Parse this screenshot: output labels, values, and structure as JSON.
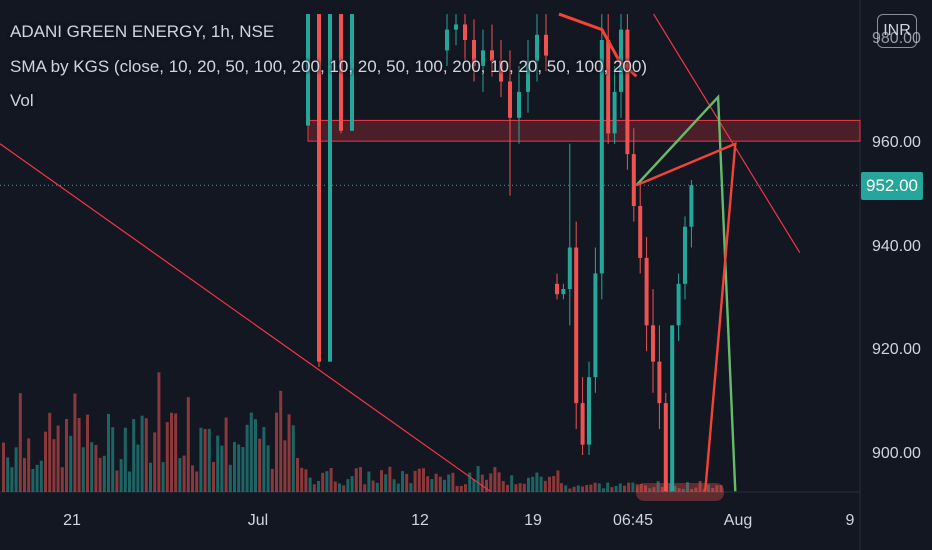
{
  "legend": {
    "symbol_line": "ADANI GREEN ENERGY, 1h, NSE",
    "sma_line": "SMA by KGS (close, 10, 20, 50, 100, 200, 10, 20, 50, 100, 200, 10, 20, 50, 100, 200)",
    "vol_line": "Vol"
  },
  "currency_badge": "INR",
  "current_price_label": "952.00",
  "colors": {
    "background": "#131722",
    "up": "#26a69a",
    "down": "#ef5350",
    "trendline": "#f23645",
    "pattern_green": "#66bb6a",
    "pattern_red": "#f44336",
    "zone_fill": "rgba(242,54,69,0.25)",
    "zone_border": "#f23645"
  },
  "chart_data": {
    "type": "candlestick",
    "title": "ADANI GREEN ENERGY, 1h, NSE",
    "y_axis": {
      "range": [
        893,
        985
      ],
      "tick_labels": [
        "980.00",
        "960.00",
        "940.00",
        "920.00",
        "900.00"
      ],
      "tick_values": [
        980,
        960,
        940,
        920,
        900
      ]
    },
    "x_axis": {
      "tick_labels": [
        "21",
        "Jul",
        "12",
        "19",
        "06:45",
        "Aug",
        "9"
      ]
    },
    "current_price": 952,
    "resistance_zone": {
      "from": 960.5,
      "to": 964.5
    },
    "candle_clusters": [
      {
        "name": "early-jul-block",
        "ohlc": [
          [
            963.5,
            985,
            963.5,
            985
          ],
          [
            985,
            985,
            917,
            918
          ],
          [
            918,
            985,
            918,
            985
          ],
          [
            985,
            985,
            962,
            962.5
          ],
          [
            962.5,
            985,
            962.5,
            985
          ]
        ]
      },
      {
        "name": "mid-jul",
        "ohlc": [
          [
            978,
            985,
            975,
            982
          ],
          [
            982,
            985,
            979,
            983
          ],
          [
            983,
            985,
            976,
            980
          ],
          [
            980,
            984,
            972,
            975
          ],
          [
            975,
            982,
            970,
            978
          ],
          [
            978,
            983,
            973,
            976
          ],
          [
            976,
            980,
            969,
            972
          ],
          [
            972,
            978,
            950,
            965
          ],
          [
            965,
            975,
            960,
            970
          ],
          [
            970,
            980,
            966,
            976
          ],
          [
            976,
            985,
            972,
            981
          ],
          [
            981,
            985,
            974,
            977
          ]
        ]
      },
      {
        "name": "jul-19-drop",
        "ohlc": [
          [
            933,
            935,
            930,
            931
          ],
          [
            931,
            933,
            930,
            932
          ],
          [
            932,
            960,
            925,
            940
          ],
          [
            940,
            945,
            905,
            910
          ],
          [
            910,
            915,
            900,
            902
          ],
          [
            902,
            918,
            900,
            915
          ],
          [
            915,
            940,
            912,
            935
          ],
          [
            935,
            985,
            930,
            980
          ],
          [
            980,
            985,
            960,
            962
          ],
          [
            962,
            975,
            960,
            970
          ],
          [
            970,
            985,
            965,
            982
          ],
          [
            982,
            985,
            955,
            958
          ],
          [
            958,
            963,
            945,
            948
          ],
          [
            948,
            952,
            935,
            938
          ],
          [
            938,
            942,
            920,
            925
          ],
          [
            925,
            932,
            912,
            918
          ],
          [
            918,
            925,
            905,
            910
          ],
          [
            910,
            912,
            893,
            893
          ],
          [
            893,
            925,
            893,
            925
          ],
          [
            925,
            935,
            922,
            933
          ],
          [
            933,
            946,
            930,
            944
          ],
          [
            944,
            953,
            940,
            952
          ]
        ]
      }
    ],
    "volume": {
      "scale": "relative",
      "max_height_fraction": 0.22
    },
    "trendlines": [
      {
        "name": "descending-trendline",
        "points": [
          [
            0,
            960
          ],
          [
            0.57,
            893
          ]
        ]
      },
      {
        "name": "steep-trendline",
        "points": [
          [
            0.76,
            985
          ],
          [
            0.93,
            939
          ]
        ]
      }
    ],
    "pattern_lines": {
      "green": [
        [
          0.74,
          952
        ],
        [
          0.835,
          969
        ],
        [
          0.855,
          893
        ]
      ],
      "red": [
        [
          0.74,
          952
        ],
        [
          0.855,
          960
        ],
        [
          0.82,
          893
        ]
      ]
    },
    "sma_line_segment": [
      [
        0.65,
        985
      ],
      [
        0.7,
        982
      ],
      [
        0.72,
        976
      ],
      [
        0.74,
        973
      ]
    ]
  }
}
